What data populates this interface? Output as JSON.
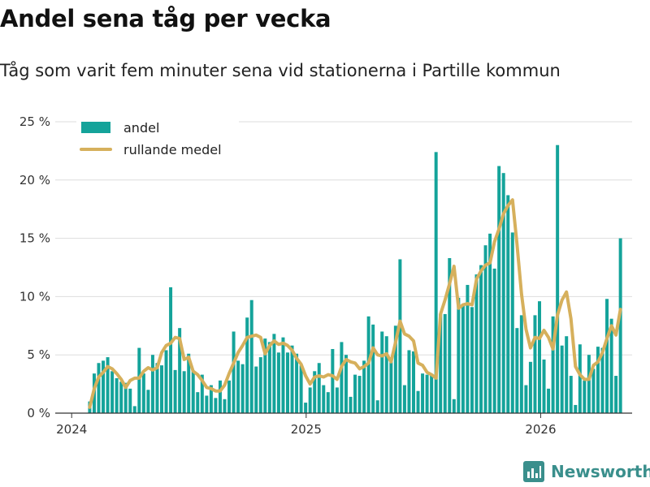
{
  "title": "Andel sena tåg per vecka",
  "subtitle": "Tåg som varit fem minuter sena vid stationerna i Partille kommun",
  "brand": "Newsworthy",
  "colors": {
    "bar": "#14a39a",
    "line": "#d6b05c",
    "grid": "#dddddd",
    "axis": "#333333"
  },
  "chart_data": {
    "type": "bar",
    "title": "Andel sena tåg per vecka",
    "xlabel": "",
    "ylabel": "",
    "x_unit": "years (decimal)",
    "xlim": [
      2023.93,
      2026.39
    ],
    "ylim": [
      0,
      25
    ],
    "yticks": [
      0,
      5,
      10,
      15,
      20,
      25
    ],
    "ytick_labels": [
      "0 %",
      "5 %",
      "10 %",
      "15 %",
      "20 %",
      "25 %"
    ],
    "xticks": [
      2024,
      2025,
      2026
    ],
    "xtick_labels": [
      "2024",
      "2025",
      "2026"
    ],
    "grid": true,
    "legend_position": "top-left",
    "series": [
      {
        "name": "andel",
        "type": "bar",
        "start_x": 2024.077,
        "step": 0.01918,
        "values": [
          1.0,
          3.4,
          4.3,
          4.5,
          4.8,
          3.6,
          3.0,
          2.7,
          2.6,
          2.1,
          0.6,
          5.6,
          3.4,
          2.0,
          5.0,
          4.3,
          4.1,
          5.4,
          10.8,
          3.7,
          7.3,
          3.6,
          5.1,
          3.6,
          1.8,
          3.3,
          1.5,
          2.4,
          1.3,
          2.8,
          1.2,
          2.8,
          7.0,
          4.5,
          4.2,
          8.2,
          9.7,
          4.0,
          4.8,
          6.4,
          6.1,
          6.8,
          5.2,
          6.5,
          5.2,
          5.8,
          5.1,
          4.1,
          0.9,
          2.2,
          3.6,
          4.3,
          2.4,
          1.8,
          5.5,
          2.2,
          6.1,
          5.0,
          1.4,
          3.3,
          3.2,
          4.5,
          8.3,
          7.6,
          1.1,
          7.0,
          6.6,
          4.6,
          7.5,
          13.2,
          2.4,
          5.4,
          5.3,
          1.9,
          3.4,
          3.3,
          3.3,
          22.4,
          8.5,
          8.5,
          13.3,
          1.2,
          9.9,
          9.3,
          11.0,
          9.1,
          11.9,
          12.7,
          14.4,
          15.4,
          12.4,
          21.2,
          20.6,
          18.7,
          15.5,
          7.3,
          8.4,
          2.4,
          4.4,
          8.4,
          9.6,
          4.6,
          2.1,
          8.3,
          23.0,
          5.8,
          6.6,
          3.2,
          0.7,
          5.9,
          2.8,
          5.0,
          3.8,
          5.7,
          5.6,
          9.8,
          8.1,
          3.2,
          15.0
        ]
      },
      {
        "name": "rullande medel",
        "type": "line",
        "start_x": 2024.077,
        "step": 0.01918,
        "values": [
          0.5,
          2.1,
          3.1,
          3.5,
          4.0,
          3.8,
          3.4,
          2.9,
          2.2,
          2.8,
          3.0,
          3.0,
          3.6,
          3.9,
          3.7,
          3.9,
          5.2,
          5.8,
          6.0,
          6.5,
          6.4,
          4.6,
          4.8,
          3.6,
          3.3,
          2.8,
          2.2,
          2.1,
          1.9,
          1.9,
          2.4,
          3.4,
          4.3,
          5.2,
          5.8,
          6.5,
          6.6,
          6.7,
          6.5,
          5.1,
          5.8,
          6.2,
          5.9,
          6.0,
          5.8,
          5.4,
          4.7,
          4.2,
          3.2,
          2.5,
          3.1,
          3.2,
          3.1,
          3.3,
          3.2,
          2.9,
          4.0,
          4.6,
          4.4,
          4.3,
          3.8,
          4.0,
          4.3,
          5.6,
          5.0,
          4.9,
          5.1,
          4.4,
          6.1,
          7.9,
          6.8,
          6.6,
          6.2,
          4.3,
          4.1,
          3.5,
          3.3,
          3.0,
          8.5,
          9.7,
          11.1,
          12.6,
          9.0,
          9.3,
          9.4,
          9.3,
          11.5,
          12.2,
          12.7,
          12.9,
          14.7,
          15.8,
          17.1,
          17.8,
          18.3,
          14.5,
          10.2,
          7.2,
          5.6,
          6.5,
          6.4,
          7.1,
          6.5,
          5.5,
          8.4,
          9.7,
          10.4,
          8.1,
          4.0,
          3.3,
          2.9,
          2.9,
          4.1,
          4.4,
          5.2,
          6.4,
          7.5,
          6.7,
          8.9
        ]
      }
    ]
  }
}
